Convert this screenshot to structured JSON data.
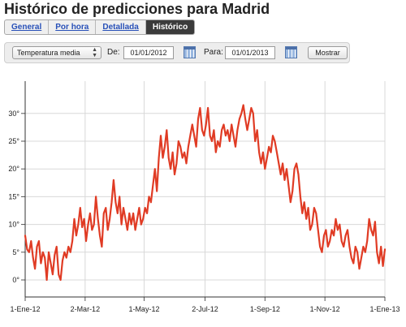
{
  "page": {
    "title": "Histórico de predicciones para Madrid"
  },
  "tabs": [
    {
      "label": "General",
      "active": false
    },
    {
      "label": "Por hora",
      "active": false
    },
    {
      "label": "Detallada",
      "active": false
    },
    {
      "label": "Histórico",
      "active": true
    }
  ],
  "controls": {
    "variable": "Temperatura media",
    "from_label": "De:",
    "from_value": "01/01/2012",
    "to_label": "Para:",
    "to_value": "01/01/2013",
    "submit": "Mostrar"
  },
  "colors": {
    "line": "#e03b24",
    "grid": "#d8d8d8",
    "active_tab": "#3b3b3b",
    "link": "#2850b8"
  },
  "chart_data": {
    "type": "line",
    "title": "",
    "xlabel": "",
    "ylabel": "",
    "y_ticks": [
      0,
      5,
      10,
      15,
      20,
      25,
      30
    ],
    "y_tick_labels": [
      "0°",
      "5°",
      "10°",
      "15°",
      "20°",
      "25°",
      "30°"
    ],
    "ylim": [
      -3,
      35
    ],
    "xlim": [
      "2012-01-01",
      "2013-01-01"
    ],
    "x_ticks": [
      "2012-01-01",
      "2012-03-02",
      "2012-05-01",
      "2012-07-02",
      "2012-09-01",
      "2012-11-01",
      "2013-01-01"
    ],
    "x_tick_labels": [
      "1-Ene-12",
      "2-Mar-12",
      "1-May-12",
      "2-Jul-12",
      "1-Sep-12",
      "1-Nov-12",
      "1-Ene-13"
    ],
    "grid": true,
    "series": [
      {
        "color": "#e03b24",
        "points": [
          [
            "2012-01-01",
            8
          ],
          [
            "2012-01-03",
            5.5
          ],
          [
            "2012-01-05",
            5
          ],
          [
            "2012-01-07",
            7
          ],
          [
            "2012-01-09",
            4
          ],
          [
            "2012-01-11",
            2
          ],
          [
            "2012-01-13",
            6
          ],
          [
            "2012-01-15",
            7
          ],
          [
            "2012-01-17",
            3
          ],
          [
            "2012-01-19",
            5
          ],
          [
            "2012-01-21",
            4
          ],
          [
            "2012-01-23",
            0
          ],
          [
            "2012-01-25",
            5
          ],
          [
            "2012-01-27",
            3
          ],
          [
            "2012-01-29",
            1
          ],
          [
            "2012-01-31",
            4.5
          ],
          [
            "2012-02-02",
            6
          ],
          [
            "2012-02-04",
            1
          ],
          [
            "2012-02-06",
            0
          ],
          [
            "2012-02-08",
            3.5
          ],
          [
            "2012-02-10",
            5
          ],
          [
            "2012-02-12",
            4
          ],
          [
            "2012-02-14",
            6
          ],
          [
            "2012-02-16",
            5
          ],
          [
            "2012-02-18",
            7
          ],
          [
            "2012-02-20",
            11
          ],
          [
            "2012-02-22",
            8
          ],
          [
            "2012-02-24",
            10
          ],
          [
            "2012-02-26",
            13
          ],
          [
            "2012-02-28",
            9.5
          ],
          [
            "2012-03-01",
            11
          ],
          [
            "2012-03-03",
            7
          ],
          [
            "2012-03-05",
            10
          ],
          [
            "2012-03-07",
            12
          ],
          [
            "2012-03-09",
            9
          ],
          [
            "2012-03-11",
            10
          ],
          [
            "2012-03-13",
            15
          ],
          [
            "2012-03-15",
            11
          ],
          [
            "2012-03-17",
            8
          ],
          [
            "2012-03-19",
            6
          ],
          [
            "2012-03-21",
            12
          ],
          [
            "2012-03-23",
            13
          ],
          [
            "2012-03-25",
            9
          ],
          [
            "2012-03-27",
            11
          ],
          [
            "2012-03-29",
            14
          ],
          [
            "2012-03-31",
            18
          ],
          [
            "2012-04-02",
            14
          ],
          [
            "2012-04-04",
            12
          ],
          [
            "2012-04-06",
            15
          ],
          [
            "2012-04-08",
            10
          ],
          [
            "2012-04-10",
            13
          ],
          [
            "2012-04-12",
            11
          ],
          [
            "2012-04-14",
            9
          ],
          [
            "2012-04-16",
            12
          ],
          [
            "2012-04-18",
            10
          ],
          [
            "2012-04-20",
            12
          ],
          [
            "2012-04-22",
            9
          ],
          [
            "2012-04-24",
            11
          ],
          [
            "2012-04-26",
            13
          ],
          [
            "2012-04-28",
            10
          ],
          [
            "2012-04-30",
            11
          ],
          [
            "2012-05-02",
            13
          ],
          [
            "2012-05-04",
            12
          ],
          [
            "2012-05-06",
            15
          ],
          [
            "2012-05-08",
            14
          ],
          [
            "2012-05-10",
            17
          ],
          [
            "2012-05-12",
            20
          ],
          [
            "2012-05-14",
            16
          ],
          [
            "2012-05-16",
            22
          ],
          [
            "2012-05-18",
            26
          ],
          [
            "2012-05-20",
            22
          ],
          [
            "2012-05-22",
            24
          ],
          [
            "2012-05-24",
            27
          ],
          [
            "2012-05-26",
            22
          ],
          [
            "2012-05-28",
            20
          ],
          [
            "2012-05-30",
            23
          ],
          [
            "2012-06-01",
            19
          ],
          [
            "2012-06-03",
            21
          ],
          [
            "2012-06-05",
            25
          ],
          [
            "2012-06-07",
            24
          ],
          [
            "2012-06-09",
            22
          ],
          [
            "2012-06-11",
            23
          ],
          [
            "2012-06-13",
            21
          ],
          [
            "2012-06-15",
            24
          ],
          [
            "2012-06-17",
            26
          ],
          [
            "2012-06-19",
            28
          ],
          [
            "2012-06-21",
            26
          ],
          [
            "2012-06-23",
            24
          ],
          [
            "2012-06-25",
            29
          ],
          [
            "2012-06-27",
            31
          ],
          [
            "2012-06-29",
            27
          ],
          [
            "2012-07-01",
            26
          ],
          [
            "2012-07-03",
            28
          ],
          [
            "2012-07-05",
            31
          ],
          [
            "2012-07-07",
            26
          ],
          [
            "2012-07-09",
            25
          ],
          [
            "2012-07-11",
            27
          ],
          [
            "2012-07-13",
            23
          ],
          [
            "2012-07-15",
            25
          ],
          [
            "2012-07-17",
            24
          ],
          [
            "2012-07-19",
            27
          ],
          [
            "2012-07-21",
            28
          ],
          [
            "2012-07-23",
            26
          ],
          [
            "2012-07-25",
            27
          ],
          [
            "2012-07-27",
            25
          ],
          [
            "2012-07-29",
            28
          ],
          [
            "2012-07-31",
            26
          ],
          [
            "2012-08-02",
            24
          ],
          [
            "2012-08-04",
            27
          ],
          [
            "2012-08-06",
            29
          ],
          [
            "2012-08-08",
            30
          ],
          [
            "2012-08-10",
            31.5
          ],
          [
            "2012-08-12",
            29
          ],
          [
            "2012-08-14",
            27
          ],
          [
            "2012-08-16",
            29
          ],
          [
            "2012-08-18",
            31
          ],
          [
            "2012-08-20",
            30
          ],
          [
            "2012-08-22",
            25
          ],
          [
            "2012-08-24",
            27
          ],
          [
            "2012-08-26",
            23
          ],
          [
            "2012-08-28",
            21
          ],
          [
            "2012-08-30",
            23
          ],
          [
            "2012-09-01",
            20
          ],
          [
            "2012-09-03",
            22
          ],
          [
            "2012-09-05",
            24
          ],
          [
            "2012-09-07",
            23
          ],
          [
            "2012-09-09",
            26
          ],
          [
            "2012-09-11",
            25
          ],
          [
            "2012-09-13",
            23
          ],
          [
            "2012-09-15",
            21
          ],
          [
            "2012-09-17",
            19
          ],
          [
            "2012-09-19",
            21
          ],
          [
            "2012-09-21",
            18
          ],
          [
            "2012-09-23",
            20
          ],
          [
            "2012-09-25",
            17
          ],
          [
            "2012-09-27",
            14
          ],
          [
            "2012-09-29",
            16
          ],
          [
            "2012-10-01",
            20
          ],
          [
            "2012-10-03",
            21
          ],
          [
            "2012-10-05",
            19
          ],
          [
            "2012-10-07",
            15
          ],
          [
            "2012-10-09",
            12
          ],
          [
            "2012-10-11",
            14
          ],
          [
            "2012-10-13",
            11
          ],
          [
            "2012-10-15",
            13
          ],
          [
            "2012-10-17",
            9
          ],
          [
            "2012-10-19",
            10
          ],
          [
            "2012-10-21",
            13
          ],
          [
            "2012-10-23",
            12
          ],
          [
            "2012-10-25",
            9
          ],
          [
            "2012-10-27",
            6
          ],
          [
            "2012-10-29",
            5
          ],
          [
            "2012-10-31",
            8
          ],
          [
            "2012-11-02",
            9
          ],
          [
            "2012-11-04",
            6
          ],
          [
            "2012-11-06",
            7
          ],
          [
            "2012-11-08",
            9
          ],
          [
            "2012-11-10",
            8
          ],
          [
            "2012-11-12",
            11
          ],
          [
            "2012-11-14",
            9
          ],
          [
            "2012-11-16",
            10
          ],
          [
            "2012-11-18",
            7
          ],
          [
            "2012-11-20",
            6
          ],
          [
            "2012-11-22",
            8
          ],
          [
            "2012-11-24",
            9
          ],
          [
            "2012-11-26",
            6
          ],
          [
            "2012-11-28",
            4
          ],
          [
            "2012-11-30",
            3
          ],
          [
            "2012-12-02",
            6
          ],
          [
            "2012-12-04",
            5
          ],
          [
            "2012-12-06",
            2
          ],
          [
            "2012-12-08",
            4
          ],
          [
            "2012-12-10",
            6
          ],
          [
            "2012-12-12",
            5
          ],
          [
            "2012-12-14",
            7
          ],
          [
            "2012-12-16",
            11
          ],
          [
            "2012-12-18",
            9
          ],
          [
            "2012-12-20",
            8
          ],
          [
            "2012-12-22",
            10.5
          ],
          [
            "2012-12-24",
            5
          ],
          [
            "2012-12-26",
            3
          ],
          [
            "2012-12-28",
            6
          ],
          [
            "2012-12-30",
            2.5
          ],
          [
            "2013-01-01",
            5.5
          ]
        ]
      }
    ]
  }
}
